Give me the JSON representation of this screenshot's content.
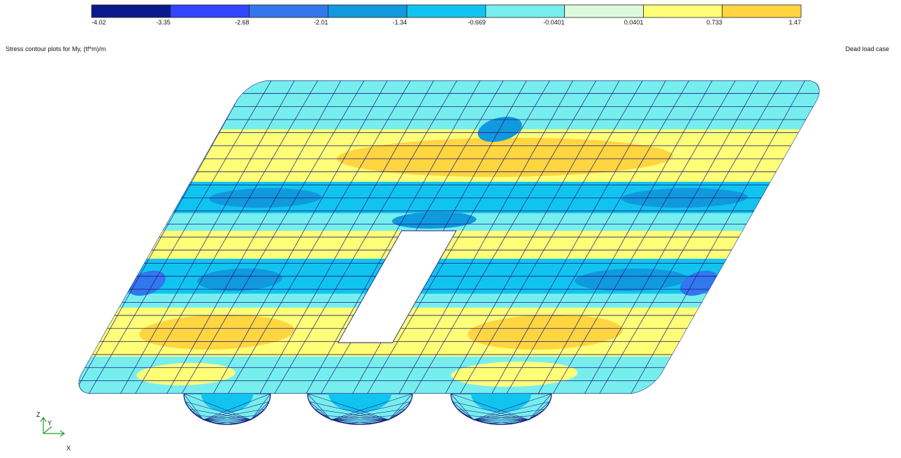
{
  "legend": {
    "labels": [
      "-4.02",
      "-3.35",
      "-2.68",
      "-2.01",
      "-1.34",
      "-0.669",
      "-0.0401",
      "0.0401",
      "0.733",
      "1.47"
    ],
    "colors": [
      "#0a1a8c",
      "#3344ff",
      "#3377ee",
      "#1199dd",
      "#11c4f0",
      "#77eeee",
      "#ddfadd",
      "#ffff77",
      "#ffd540"
    ]
  },
  "header": {
    "title": "Stress contour plots for My, (tf*m)/m",
    "load_case": "Dead load case"
  },
  "axes": {
    "z": "Z",
    "y": "Y",
    "x": "X"
  }
}
